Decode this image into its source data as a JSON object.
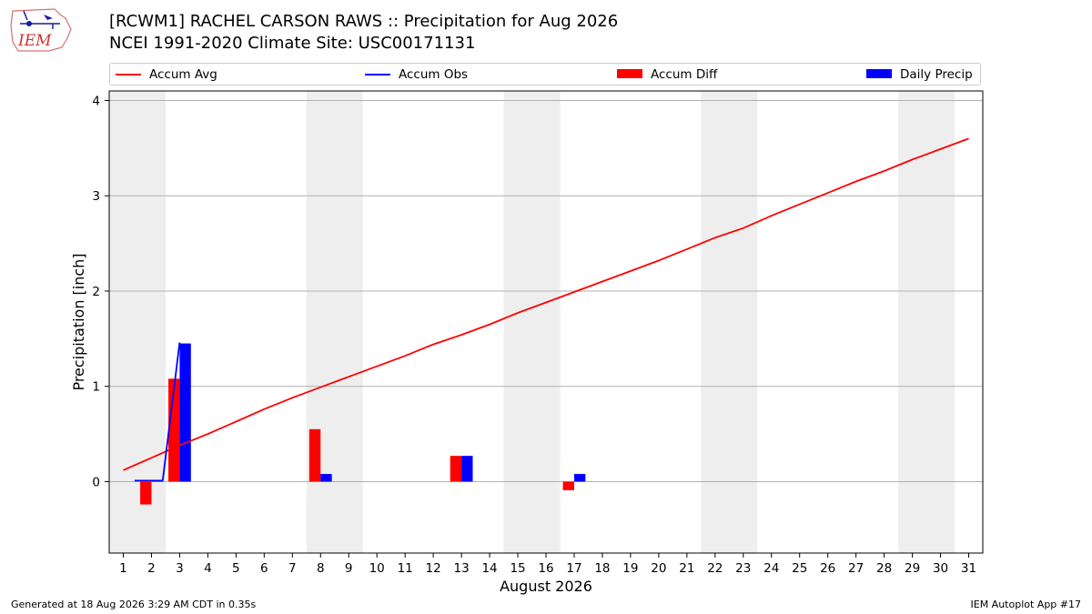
{
  "header": {
    "title_line1": "[RCWM1] RACHEL CARSON RAWS :: Precipitation for Aug 2026",
    "title_line2": "NCEI 1991-2020 Climate Site: USC00171131",
    "logo_text": "IEM"
  },
  "legend": {
    "items": [
      {
        "label": "Accum Avg",
        "kind": "line",
        "color": "#ff0000"
      },
      {
        "label": "Accum Obs",
        "kind": "line",
        "color": "#0000ff"
      },
      {
        "label": "Accum Diff",
        "kind": "patch",
        "color": "#ff0000"
      },
      {
        "label": "Daily Precip",
        "kind": "patch",
        "color": "#0000ff"
      }
    ]
  },
  "footer": {
    "left": "Generated at 18 Aug 2026 3:29 AM CDT in 0.35s",
    "right": "IEM Autoplot App #17"
  },
  "chart_data": {
    "type": "bar",
    "title": "[RCWM1] RACHEL CARSON RAWS :: Precipitation for Aug 2026",
    "xlabel": "August 2026",
    "ylabel": "Precipitation [inch]",
    "xlim": [
      0.5,
      31.5
    ],
    "ylim": [
      -0.75,
      4.1
    ],
    "yticks": [
      0,
      1,
      2,
      3,
      4
    ],
    "xticks": [
      1,
      2,
      3,
      4,
      5,
      6,
      7,
      8,
      9,
      10,
      11,
      12,
      13,
      14,
      15,
      16,
      17,
      18,
      19,
      20,
      21,
      22,
      23,
      24,
      25,
      26,
      27,
      28,
      29,
      30,
      31
    ],
    "grid": "y",
    "legend_position": "top",
    "weekend_shading": [
      [
        1,
        2
      ],
      [
        8,
        9
      ],
      [
        15,
        16
      ],
      [
        22,
        23
      ],
      [
        29,
        30
      ]
    ],
    "shade_color": "#eeeeee",
    "series": [
      {
        "name": "Accum Avg",
        "kind": "line",
        "color": "#ff0000",
        "x": [
          1,
          2,
          3,
          4,
          5,
          6,
          7,
          8,
          9,
          10,
          11,
          12,
          13,
          14,
          15,
          16,
          17,
          18,
          19,
          20,
          21,
          22,
          23,
          24,
          25,
          26,
          27,
          28,
          29,
          30,
          31
        ],
        "values": [
          0.12,
          0.25,
          0.38,
          0.5,
          0.63,
          0.76,
          0.88,
          0.99,
          1.1,
          1.21,
          1.32,
          1.44,
          1.54,
          1.65,
          1.77,
          1.88,
          1.99,
          2.1,
          2.21,
          2.32,
          2.44,
          2.56,
          2.66,
          2.79,
          2.91,
          3.03,
          3.15,
          3.26,
          3.38,
          3.49,
          3.6
        ]
      },
      {
        "name": "Accum Obs",
        "kind": "line",
        "color": "#0000ff",
        "x": [
          1.4,
          2,
          2.4,
          3
        ],
        "values": [
          0.01,
          0.01,
          0.01,
          1.46
        ]
      },
      {
        "name": "Accum Diff",
        "kind": "bar",
        "color": "#ff0000",
        "offset": -0.2,
        "x": [
          2,
          3,
          8,
          13,
          17
        ],
        "values": [
          -0.24,
          1.08,
          0.55,
          0.27,
          -0.09
        ]
      },
      {
        "name": "Daily Precip",
        "kind": "bar",
        "color": "#0000ff",
        "offset": 0.2,
        "x": [
          2,
          3,
          8,
          13,
          17
        ],
        "values": [
          0.01,
          1.45,
          0.08,
          0.27,
          0.08
        ]
      }
    ]
  }
}
